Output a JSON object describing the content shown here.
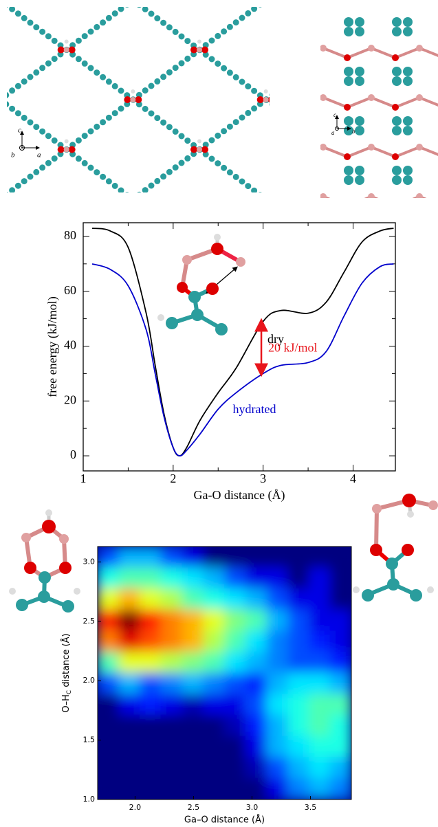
{
  "structures": {
    "left_axes": [
      "c",
      "b",
      "a"
    ],
    "right_axes": [
      "c",
      "a",
      "b"
    ]
  },
  "chart_data": [
    {
      "type": "line",
      "xlabel": "Ga-O distance (Å)",
      "ylabel": "free energy (kJ/mol)",
      "x": [
        1.1,
        1.3,
        1.5,
        1.7,
        1.8,
        1.9,
        2.0,
        2.07,
        2.15,
        2.3,
        2.5,
        2.7,
        3.0,
        3.2,
        3.5,
        3.7,
        3.9,
        4.1,
        4.3,
        4.45
      ],
      "series": [
        {
          "name": "dry",
          "color": "#000000",
          "values": [
            83,
            82,
            76,
            52,
            33,
            15,
            3,
            0,
            3,
            13,
            23,
            32,
            49,
            53,
            52,
            56,
            67,
            78,
            82,
            83
          ]
        },
        {
          "name": "hydrated",
          "color": "#0000cc",
          "values": [
            70,
            68,
            62,
            46,
            30,
            14,
            3,
            0,
            2,
            8,
            17,
            23,
            30,
            33,
            34,
            38,
            51,
            63,
            69,
            70
          ]
        }
      ],
      "annotation": {
        "text": "20 kJ/mol",
        "color": "#e8141b",
        "x": 2.98,
        "y1": 30,
        "y2": 49
      },
      "xlim": [
        1,
        4.47
      ],
      "ylim": [
        -5.5,
        85
      ],
      "xticks": [
        1,
        2,
        3,
        4
      ],
      "yticks": [
        0,
        20,
        40,
        60,
        80
      ],
      "xminor": [
        1.5,
        2.5,
        3.5
      ],
      "yminor": [
        10,
        30,
        50,
        70
      ]
    },
    {
      "type": "heatmap",
      "colormap": "jet",
      "xlabel": "Ga–O distance (Å)",
      "ylabel": {
        "main": "O–H",
        "sub": "C",
        "rest": " distance (Å)"
      },
      "xlim": [
        1.68,
        3.85
      ],
      "ylim": [
        1.0,
        3.13
      ],
      "xticks": [
        {
          "value": 2,
          "label": "2.0"
        },
        {
          "value": 2.5,
          "label": "2.5"
        },
        {
          "value": 3,
          "label": "3.0"
        },
        {
          "value": 3.5,
          "label": "3.5"
        }
      ],
      "yticks": [
        {
          "value": 1,
          "label": "1.0"
        },
        {
          "value": 1.5,
          "label": "1.5"
        },
        {
          "value": 2,
          "label": "2.0"
        },
        {
          "value": 2.5,
          "label": "2.5"
        },
        {
          "value": 3,
          "label": "3.0"
        }
      ],
      "z": [
        [
          0.2,
          0.3,
          0.3,
          0.2,
          0.1,
          0,
          0,
          0,
          0,
          0,
          0,
          0
        ],
        [
          0.4,
          0.45,
          0.45,
          0.4,
          0.35,
          0.3,
          0.2,
          0.1,
          0.1,
          0,
          0.1,
          0
        ],
        [
          0.6,
          0.7,
          0.6,
          0.55,
          0.45,
          0.4,
          0.35,
          0.3,
          0.2,
          0.1,
          0.1,
          0
        ],
        [
          0.85,
          1.0,
          0.85,
          0.75,
          0.7,
          0.6,
          0.5,
          0.45,
          0.3,
          0.2,
          0.1,
          0.1
        ],
        [
          0.75,
          0.9,
          0.8,
          0.75,
          0.7,
          0.55,
          0.45,
          0.35,
          0.25,
          0.2,
          0.15,
          0.1
        ],
        [
          0.45,
          0.6,
          0.6,
          0.55,
          0.5,
          0.45,
          0.35,
          0.3,
          0.25,
          0.2,
          0.2,
          0.15
        ],
        [
          0.2,
          0.3,
          0.2,
          0.25,
          0.3,
          0.25,
          0.2,
          0.15,
          0.3,
          0.35,
          0.35,
          0.3
        ],
        [
          0,
          0.1,
          0.15,
          0.1,
          0.05,
          0.1,
          0.1,
          0.2,
          0.35,
          0.4,
          0.45,
          0.45
        ],
        [
          0,
          0,
          0,
          0,
          0,
          0,
          0.05,
          0.15,
          0.3,
          0.4,
          0.45,
          0.4
        ],
        [
          0,
          0,
          0,
          0,
          0,
          0,
          0,
          0.1,
          0.3,
          0.35,
          0.4,
          0.4
        ],
        [
          0,
          0,
          0,
          0,
          0,
          0,
          0,
          0.05,
          0.2,
          0.3,
          0.35,
          0.3
        ],
        [
          0,
          0,
          0,
          0,
          0,
          0,
          0,
          0,
          0.1,
          0.25,
          0.3,
          0.25
        ]
      ]
    }
  ]
}
